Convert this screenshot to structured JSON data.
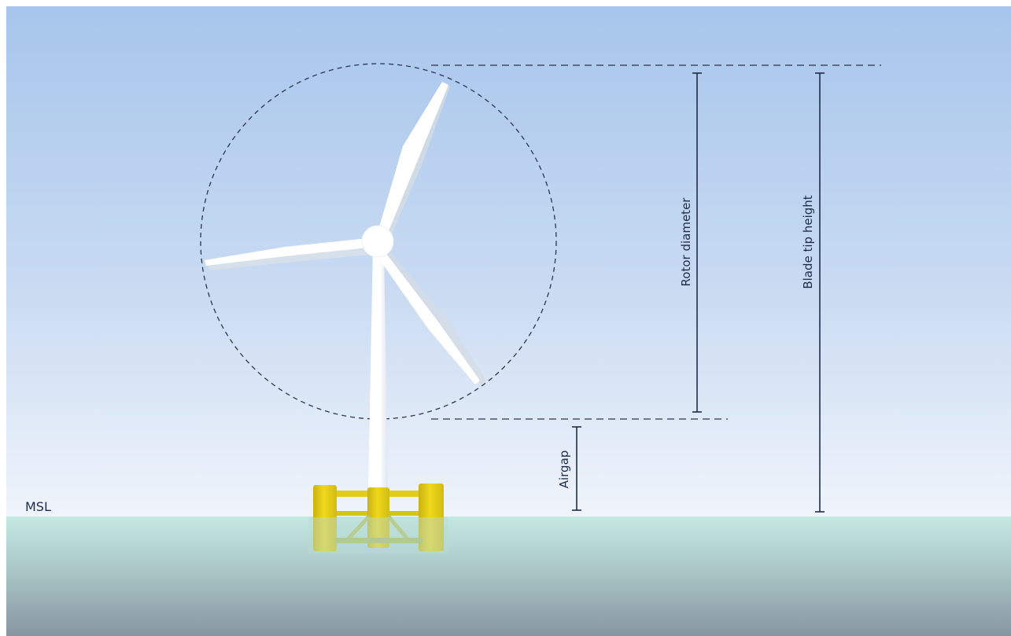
{
  "labels": {
    "rotor_diameter": "Rotor diameter",
    "blade_tip_height": "Blade tip height",
    "airgap": "Airgap",
    "msl": "MSL"
  },
  "colors": {
    "sky_top": "#a7c5ec",
    "sky_bottom": "#eef3fb",
    "sea_top": "#c2e6e0",
    "sea_bottom": "#8a98a3",
    "floater": "#e8d21a",
    "floater_dark": "#c9b310",
    "line": "#1f2d4a",
    "turbine": "#ffffff"
  },
  "icons": {
    "turbine": "floating-wind-turbine-icon"
  }
}
